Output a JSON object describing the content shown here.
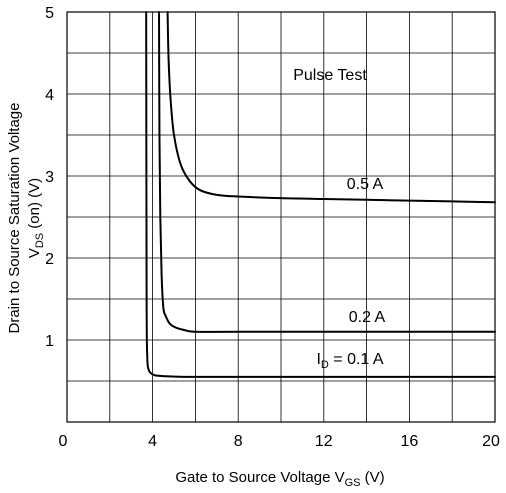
{
  "chart_data": {
    "type": "line",
    "xlabel": "Gate to Source Voltage V",
    "xlabel_sub": "GS",
    "xlabel_unit": " (V)",
    "ylabel_line1": "Drain to Source Saturation Voltage",
    "ylabel_line2_main": "V",
    "ylabel_line2_sub": "DS",
    "ylabel_line2_rest": " (on) (V)",
    "xlim": [
      0,
      20
    ],
    "ylim": [
      0,
      5
    ],
    "x_ticks": [
      "0",
      "4",
      "8",
      "12",
      "16",
      "20"
    ],
    "y_ticks": [
      "1",
      "2",
      "3",
      "4",
      "5"
    ],
    "grid": true,
    "annotation": "Pulse Test",
    "series": [
      {
        "name": "I",
        "name_sub": "D",
        "name_rest": " = 0.1 A",
        "x": [
          3.7,
          3.72,
          3.75,
          3.8,
          3.9,
          4.1,
          4.5,
          5.5,
          8,
          12,
          16,
          20
        ],
        "y": [
          5.0,
          1.5,
          0.8,
          0.65,
          0.6,
          0.57,
          0.56,
          0.55,
          0.55,
          0.55,
          0.55,
          0.55
        ]
      },
      {
        "name": "0.2 A",
        "x": [
          4.3,
          4.32,
          4.36,
          4.42,
          4.5,
          4.6,
          4.8,
          5.1,
          5.5,
          6,
          8,
          12,
          16,
          20
        ],
        "y": [
          5.0,
          3.5,
          2.5,
          1.8,
          1.4,
          1.3,
          1.2,
          1.15,
          1.12,
          1.1,
          1.1,
          1.1,
          1.1,
          1.1
        ]
      },
      {
        "name": "0.5 A",
        "x": [
          4.7,
          4.75,
          4.85,
          5.0,
          5.3,
          5.7,
          6.2,
          7.0,
          8,
          10,
          12,
          14,
          16,
          18,
          20
        ],
        "y": [
          5.0,
          4.4,
          3.9,
          3.5,
          3.15,
          2.95,
          2.83,
          2.77,
          2.75,
          2.73,
          2.72,
          2.71,
          2.7,
          2.69,
          2.68
        ]
      }
    ]
  }
}
